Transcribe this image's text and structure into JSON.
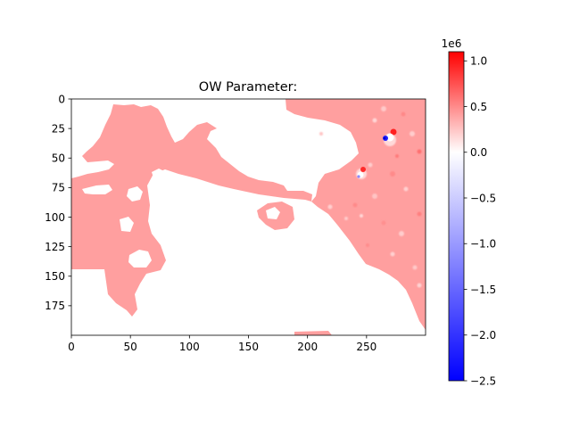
{
  "chart_data": {
    "type": "heatmap",
    "title": "OW Parameter:",
    "xlabel": "",
    "ylabel": "",
    "x_range": [
      0,
      300
    ],
    "y_range": [
      0,
      200
    ],
    "y_inverted": true,
    "x_ticks": [
      "0",
      "50",
      "100",
      "150",
      "200",
      "250"
    ],
    "x_tick_values": [
      0,
      50,
      100,
      150,
      200,
      250
    ],
    "y_ticks": [
      "0",
      "25",
      "50",
      "75",
      "100",
      "125",
      "150",
      "175"
    ],
    "y_tick_values": [
      0,
      25,
      50,
      75,
      100,
      125,
      150,
      175
    ],
    "colormap": "bwr",
    "colorbar": {
      "range": [
        -2.5,
        1.1
      ],
      "ticks": [
        "−2.5",
        "−2.0",
        "−1.5",
        "−1.0",
        "−0.5",
        "0.0",
        "0.5",
        "1.0"
      ],
      "tick_values": [
        -2.5,
        -2.0,
        -1.5,
        -1.0,
        -0.5,
        0.0,
        0.5,
        1.0
      ],
      "multiplier": "1e6"
    },
    "colors": {
      "land_nan": "#ffffff",
      "ocean_background": "#ff9f9f",
      "max": "#ff0000",
      "zero": "#ffffff",
      "min": "#0000ff"
    },
    "notable_features": [
      {
        "x": 265,
        "y": 33,
        "value": -2.5,
        "description": "strong negative core"
      },
      {
        "x": 268,
        "y": 28,
        "value": 1.0
      },
      {
        "x": 245,
        "y": 63,
        "value": 1.0
      },
      {
        "x": 244,
        "y": 67,
        "value": -1.0
      }
    ]
  }
}
